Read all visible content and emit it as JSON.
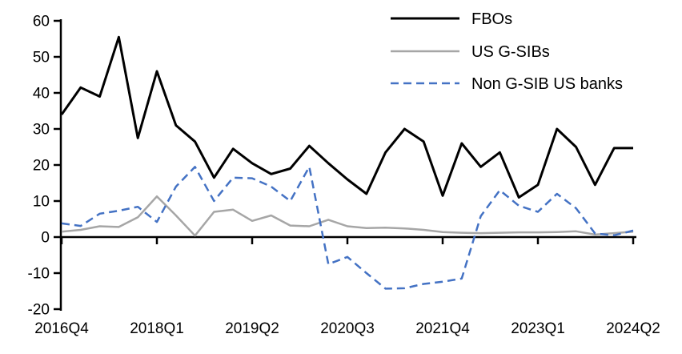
{
  "chart_data": {
    "type": "line",
    "x_categories": [
      "2016Q4",
      "2017Q1",
      "2017Q2",
      "2017Q3",
      "2017Q4",
      "2018Q1",
      "2018Q2",
      "2018Q3",
      "2018Q4",
      "2019Q1",
      "2019Q2",
      "2019Q3",
      "2019Q4",
      "2020Q1",
      "2020Q2",
      "2020Q3",
      "2020Q4",
      "2021Q1",
      "2021Q2",
      "2021Q3",
      "2021Q4",
      "2022Q1",
      "2022Q2",
      "2022Q3",
      "2022Q4",
      "2023Q1",
      "2023Q2",
      "2023Q3",
      "2023Q4",
      "2024Q1",
      "2024Q2"
    ],
    "x_tick_labels": [
      "2016Q4",
      "2018Q1",
      "2019Q2",
      "2020Q3",
      "2021Q4",
      "2023Q1",
      "2024Q2"
    ],
    "x_tick_indices": [
      0,
      5,
      10,
      15,
      20,
      25,
      30
    ],
    "y_ticks": [
      -20,
      -10,
      0,
      10,
      20,
      30,
      40,
      50,
      60
    ],
    "ylim": [
      -20,
      60
    ],
    "grid": false,
    "legend_position": "top-right",
    "series": [
      {
        "name": "FBOs",
        "color": "#000000",
        "style": "solid",
        "width": 3,
        "values": [
          34,
          41.5,
          39,
          55.5,
          27.5,
          46,
          31,
          26.5,
          16.5,
          24.5,
          20.5,
          17.5,
          19,
          25.3,
          20.5,
          16,
          12,
          23.5,
          30,
          26.5,
          11.5,
          26,
          19.5,
          23.5,
          11,
          14.5,
          30,
          25,
          14.5,
          24.7,
          24.7
        ]
      },
      {
        "name": "US G-SIBs",
        "color": "#A6A6A6",
        "style": "solid",
        "width": 2.5,
        "values": [
          1.5,
          2,
          3,
          2.8,
          5.5,
          11.3,
          6,
          0.4,
          7,
          7.6,
          4.5,
          6,
          3.2,
          3,
          4.8,
          3,
          2.5,
          2.6,
          2.4,
          2,
          1.4,
          1.2,
          1.1,
          1.2,
          1.3,
          1.3,
          1.4,
          1.6,
          0.7,
          1.1,
          1.5
        ]
      },
      {
        "name": "Non G-SIB US banks",
        "color": "#4472C4",
        "style": "dashed",
        "width": 2.5,
        "values": [
          3.8,
          3.1,
          6.5,
          7.3,
          8.4,
          4.2,
          14,
          19.5,
          10,
          16.5,
          16.3,
          14,
          10,
          19.5,
          -7.5,
          -5.5,
          -10,
          -14.3,
          -14.2,
          -13,
          -12.4,
          -11.5,
          5.8,
          13,
          8.7,
          7,
          12,
          8,
          1,
          0.5,
          1.8
        ]
      }
    ]
  }
}
